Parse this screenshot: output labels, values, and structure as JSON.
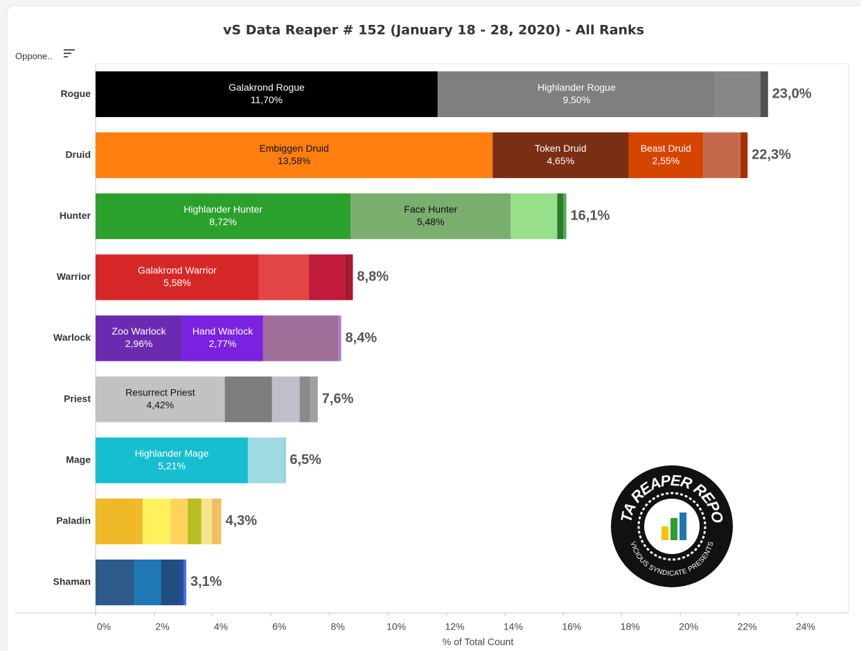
{
  "chart_data": {
    "type": "stacked_bar",
    "title": "vS Data Reaper # 152 (January 18 - 28, 2020) - All Ranks",
    "header_label": "Oppone..",
    "x_label": "% of Total Count",
    "xlim": [
      0,
      24
    ],
    "xticks": [
      {
        "value": 0,
        "label": "0%"
      },
      {
        "value": 2,
        "label": "2%"
      },
      {
        "value": 4,
        "label": "4%"
      },
      {
        "value": 6,
        "label": "6%"
      },
      {
        "value": 8,
        "label": "8%"
      },
      {
        "value": 10,
        "label": "10%"
      },
      {
        "value": 12,
        "label": "12%"
      },
      {
        "value": 14,
        "label": "14%"
      },
      {
        "value": 16,
        "label": "16%"
      },
      {
        "value": 18,
        "label": "18%"
      },
      {
        "value": 20,
        "label": "20%"
      },
      {
        "value": 22,
        "label": "22%"
      },
      {
        "value": 24,
        "label": "24%"
      }
    ],
    "grid": false,
    "categories": [
      "Rogue",
      "Druid",
      "Hunter",
      "Warrior",
      "Warlock",
      "Priest",
      "Mage",
      "Paladin",
      "Shaman"
    ],
    "bars": [
      {
        "total": 23.0,
        "total_label": "23,0%",
        "segments": [
          {
            "name": "Galakrond Rogue",
            "value": 11.7,
            "value_label": "11,70%",
            "color": "#000000"
          },
          {
            "name": "Highlander Rogue",
            "value": 9.5,
            "value_label": "9,50%",
            "color": "#7f7f7f"
          },
          {
            "value": 1.54,
            "color": "#878787"
          },
          {
            "value": 0.26,
            "color": "#505050"
          }
        ]
      },
      {
        "total": 22.3,
        "total_label": "22,3%",
        "segments": [
          {
            "name": "Embiggen Druid",
            "value": 13.58,
            "value_label": "13,58%",
            "color": "#ff7f0e"
          },
          {
            "name": "Token Druid",
            "value": 4.65,
            "value_label": "4,65%",
            "color": "#7a2e14"
          },
          {
            "name": "Beast Druid",
            "value": 2.55,
            "value_label": "2,55%",
            "color": "#d64500"
          },
          {
            "value": 1.28,
            "color": "#c46a4a"
          },
          {
            "value": 0.24,
            "color": "#a33000"
          }
        ]
      },
      {
        "total": 16.1,
        "total_label": "16,1%",
        "segments": [
          {
            "name": "Highlander Hunter",
            "value": 8.72,
            "value_label": "8,72%",
            "color": "#2ca02c"
          },
          {
            "name": "Face Hunter",
            "value": 5.48,
            "value_label": "5,48%",
            "color": "#79ae6e"
          },
          {
            "value": 1.59,
            "color": "#98df8a"
          },
          {
            "value": 0.21,
            "color": "#2d7a2d"
          },
          {
            "value": 0.1,
            "color": "#4caf50"
          }
        ]
      },
      {
        "total": 8.8,
        "total_label": "8,8%",
        "segments": [
          {
            "name": "Galakrond Warrior",
            "value": 5.58,
            "value_label": "5,58%",
            "color": "#d62728"
          },
          {
            "value": 1.71,
            "color": "#e34545"
          },
          {
            "value": 1.23,
            "color": "#c01a3c"
          },
          {
            "value": 0.28,
            "color": "#a8182c"
          }
        ]
      },
      {
        "total": 8.4,
        "total_label": "8,4%",
        "segments": [
          {
            "name": "Zoo Warlock",
            "value": 2.96,
            "value_label": "2,96%",
            "color": "#6a2bb0"
          },
          {
            "name": "Hand Warlock",
            "value": 2.77,
            "value_label": "2,77%",
            "color": "#7b22e0"
          },
          {
            "value": 2.58,
            "color": "#a06e99"
          },
          {
            "value": 0.09,
            "color": "#b07cd0"
          }
        ]
      },
      {
        "total": 7.6,
        "total_label": "7,6%",
        "segments": [
          {
            "name": "Resurrect Priest",
            "value": 4.42,
            "value_label": "4,42%",
            "color": "#c2c2c2"
          },
          {
            "value": 1.61,
            "color": "#7d7d7d"
          },
          {
            "value": 0.95,
            "color": "#bfbfcc"
          },
          {
            "value": 0.36,
            "color": "#8a8a8a"
          },
          {
            "value": 0.26,
            "color": "#a0a0a0"
          }
        ]
      },
      {
        "total": 6.5,
        "total_label": "6,5%",
        "segments": [
          {
            "name": "Highlander Mage",
            "value": 5.21,
            "value_label": "5,21%",
            "color": "#17becf"
          },
          {
            "value": 1.25,
            "color": "#9fd9e3"
          },
          {
            "value": 0.04,
            "color": "#5dc5d5"
          }
        ]
      },
      {
        "total": 4.3,
        "total_label": "4,3%",
        "segments": [
          {
            "value": 1.61,
            "color": "#f0b929"
          },
          {
            "value": 0.95,
            "color": "#fff15e"
          },
          {
            "value": 0.59,
            "color": "#ffd45e"
          },
          {
            "value": 0.47,
            "color": "#bcbd22"
          },
          {
            "value": 0.36,
            "color": "#f5e58f"
          },
          {
            "value": 0.32,
            "color": "#f0c060"
          }
        ]
      },
      {
        "total": 3.1,
        "total_label": "3,1%",
        "segments": [
          {
            "value": 1.33,
            "color": "#2c5b8a"
          },
          {
            "value": 0.9,
            "color": "#1f77b4"
          },
          {
            "value": 0.66,
            "color": "#1f4f80"
          },
          {
            "value": 0.12,
            "color": "#2a4aa0"
          },
          {
            "value": 0.09,
            "color": "#3f6fe0"
          }
        ]
      }
    ]
  },
  "logo": {
    "title": "DATA REAPER REPORT",
    "subtitle": "VICIOUS SYNDICATE PRESENTS"
  }
}
